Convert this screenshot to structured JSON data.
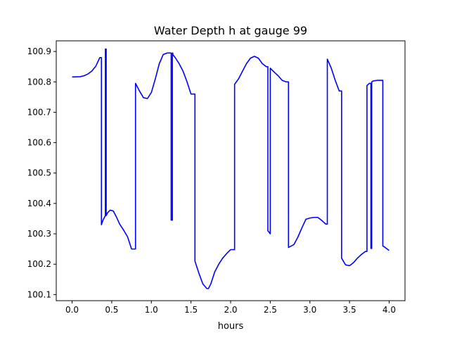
{
  "chart_data": {
    "type": "line",
    "title": "Water Depth h at gauge 99",
    "xlabel": "hours",
    "ylabel": "",
    "xlim": [
      -0.2,
      4.2
    ],
    "ylim": [
      100.08,
      100.935
    ],
    "xticks": [
      0.0,
      0.5,
      1.0,
      1.5,
      2.0,
      2.5,
      3.0,
      3.5,
      4.0
    ],
    "xtick_labels": [
      "0.0",
      "0.5",
      "1.0",
      "1.5",
      "2.0",
      "2.5",
      "3.0",
      "3.5",
      "4.0"
    ],
    "yticks": [
      100.1,
      100.2,
      100.3,
      100.4,
      100.5,
      100.6,
      100.7,
      100.8,
      100.9
    ],
    "ytick_labels": [
      "100.1",
      "100.2",
      "100.3",
      "100.4",
      "100.5",
      "100.6",
      "100.7",
      "100.8",
      "100.9"
    ],
    "grid": false,
    "series": [
      {
        "color": "#0000ff",
        "x": [
          0.0,
          0.1,
          0.15,
          0.2,
          0.25,
          0.3,
          0.35,
          0.37,
          0.37,
          0.39,
          0.42,
          0.42,
          0.425,
          0.43,
          0.43,
          0.45,
          0.48,
          0.52,
          0.56,
          0.6,
          0.65,
          0.7,
          0.75,
          0.8,
          0.8,
          0.85,
          0.9,
          0.95,
          1.0,
          1.05,
          1.1,
          1.15,
          1.2,
          1.25,
          1.25,
          1.26,
          1.265,
          1.265,
          1.27,
          1.27,
          1.3,
          1.35,
          1.4,
          1.45,
          1.5,
          1.55,
          1.55,
          1.6,
          1.65,
          1.7,
          1.72,
          1.75,
          1.8,
          1.85,
          1.9,
          1.95,
          2.0,
          2.05,
          2.05,
          2.1,
          2.15,
          2.2,
          2.25,
          2.3,
          2.35,
          2.4,
          2.45,
          2.47,
          2.47,
          2.5,
          2.5,
          2.55,
          2.6,
          2.65,
          2.7,
          2.73,
          2.73,
          2.8,
          2.85,
          2.9,
          2.95,
          3.0,
          3.05,
          3.1,
          3.15,
          3.2,
          3.22,
          3.22,
          3.27,
          3.32,
          3.37,
          3.4,
          3.4,
          3.45,
          3.5,
          3.55,
          3.6,
          3.65,
          3.7,
          3.72,
          3.72,
          3.75,
          3.77,
          3.77,
          3.78,
          3.78,
          3.8,
          3.85,
          3.9,
          3.92,
          3.92,
          3.95,
          4.0
        ],
        "y": [
          100.816,
          100.817,
          100.82,
          100.826,
          100.836,
          100.852,
          100.88,
          100.88,
          100.33,
          100.345,
          100.36,
          100.908,
          100.908,
          100.908,
          100.36,
          100.37,
          100.378,
          100.375,
          100.355,
          100.332,
          100.312,
          100.29,
          100.25,
          100.25,
          100.795,
          100.77,
          100.748,
          100.745,
          100.765,
          100.81,
          100.86,
          100.89,
          100.895,
          100.895,
          100.345,
          100.345,
          100.345,
          100.895,
          100.895,
          100.89,
          100.88,
          100.86,
          100.835,
          100.8,
          100.76,
          100.76,
          100.21,
          100.17,
          100.135,
          100.12,
          100.12,
          100.135,
          100.175,
          100.2,
          100.22,
          100.235,
          100.248,
          100.248,
          100.792,
          100.81,
          100.835,
          100.86,
          100.878,
          100.884,
          100.878,
          100.86,
          100.85,
          100.85,
          100.31,
          100.3,
          100.845,
          100.832,
          100.82,
          100.805,
          100.8,
          100.8,
          100.255,
          100.265,
          100.29,
          100.32,
          100.348,
          100.352,
          100.354,
          100.354,
          100.344,
          100.332,
          100.332,
          100.875,
          100.845,
          100.805,
          100.77,
          100.77,
          100.22,
          100.198,
          100.195,
          100.205,
          100.22,
          100.232,
          100.242,
          100.242,
          100.788,
          100.795,
          100.795,
          100.252,
          100.252,
          100.8,
          100.803,
          100.805,
          100.805,
          100.805,
          100.26,
          100.255,
          100.245
        ]
      }
    ]
  }
}
